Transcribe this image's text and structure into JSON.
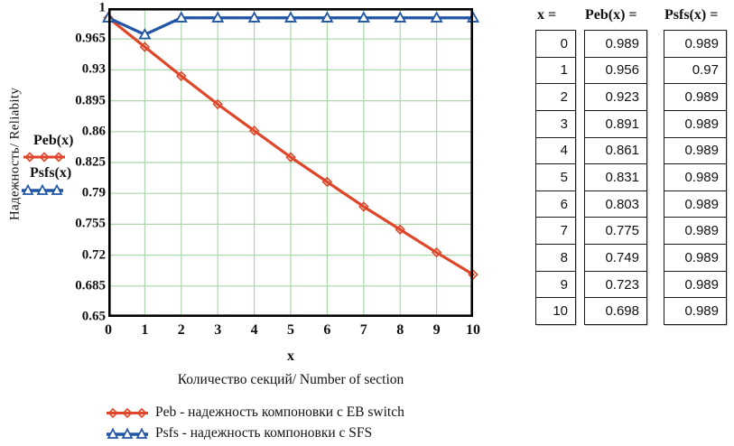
{
  "chart": {
    "y_axis_label": "Надежность/ Reliabity",
    "caption": "Количество секций/ Number of section",
    "inline_legend": {
      "peb": "Peb(x)",
      "psfs": "Psfs(x)"
    },
    "colors": {
      "peb_red": "#e0472a",
      "psfs_blue": "#2155a5",
      "grid_green": "#abd7ab",
      "frame_black": "#000000"
    }
  },
  "chart_data": {
    "type": "line",
    "title": "",
    "xlabel": "x",
    "ylabel": "Надежность/ Reliabity",
    "x": [
      0,
      1,
      2,
      3,
      4,
      5,
      6,
      7,
      8,
      9,
      10
    ],
    "series": [
      {
        "name": "Peb",
        "marker": "diamond",
        "color": "#e0472a",
        "values": [
          0.989,
          0.956,
          0.923,
          0.891,
          0.861,
          0.831,
          0.803,
          0.775,
          0.749,
          0.723,
          0.698
        ]
      },
      {
        "name": "Psfs",
        "marker": "triangle",
        "color": "#2155a5",
        "values": [
          0.989,
          0.97,
          0.989,
          0.989,
          0.989,
          0.989,
          0.989,
          0.989,
          0.989,
          0.989,
          0.989
        ]
      }
    ],
    "xlim": [
      0,
      10
    ],
    "ylim": [
      0.65,
      1
    ],
    "x_tick_labels": [
      "0",
      "1",
      "2",
      "3",
      "4",
      "5",
      "6",
      "7",
      "8",
      "9",
      "10"
    ],
    "y_tick_labels": [
      "1",
      "0.965",
      "0.93",
      "0.895",
      "0.86",
      "0.825",
      "0.79",
      "0.755",
      "0.72",
      "0.685",
      "0.65"
    ],
    "grid": true,
    "legend_position": "bottom",
    "legend": [
      "Peb - надежность компоновки с EB switch",
      "Psfs - надежность компоновки с SFS"
    ]
  },
  "table": {
    "columns": [
      {
        "header": "x =",
        "values": [
          "0",
          "1",
          "2",
          "3",
          "4",
          "5",
          "6",
          "7",
          "8",
          "9",
          "10"
        ]
      },
      {
        "header": "Peb(x) =",
        "values": [
          "0.989",
          "0.956",
          "0.923",
          "0.891",
          "0.861",
          "0.831",
          "0.803",
          "0.775",
          "0.749",
          "0.723",
          "0.698"
        ]
      },
      {
        "header": "Psfs(x) =",
        "values": [
          "0.989",
          "0.97",
          "0.989",
          "0.989",
          "0.989",
          "0.989",
          "0.989",
          "0.989",
          "0.989",
          "0.989",
          "0.989"
        ]
      }
    ]
  }
}
